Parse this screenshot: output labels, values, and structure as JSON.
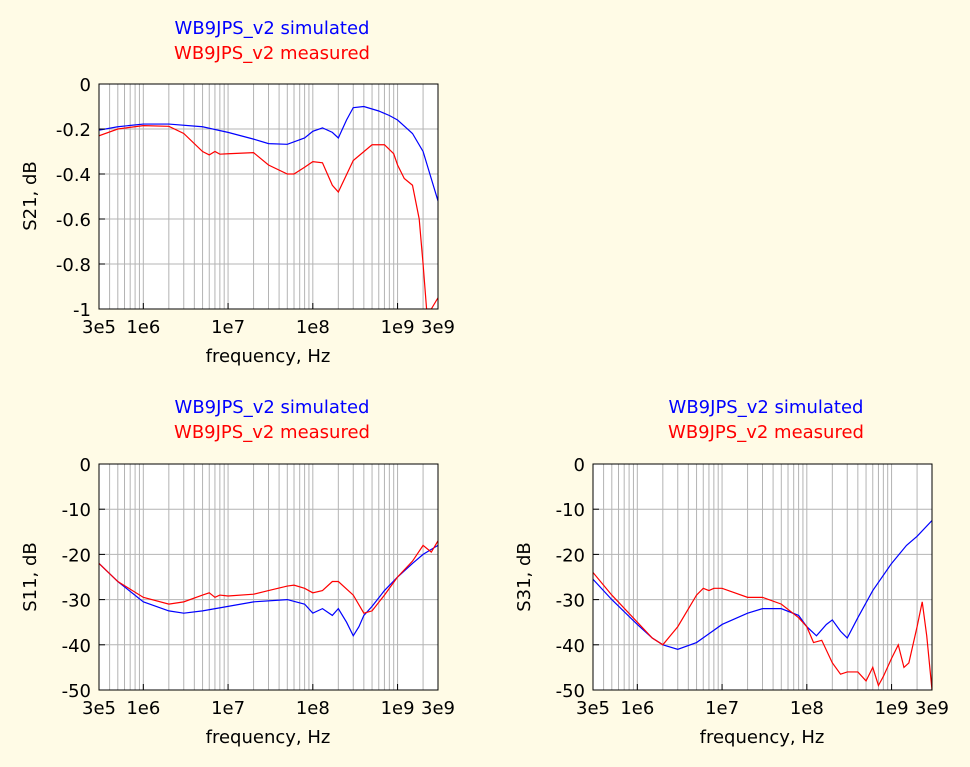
{
  "colors": {
    "simulated": "#0000ff",
    "measured": "#ff0000",
    "background": "#fffbe6",
    "grid": "#b4b4b4"
  },
  "chart_data": [
    {
      "id": "s21",
      "type": "line",
      "xlabel": "frequency, Hz",
      "ylabel": "S21, dB",
      "xscale": "log",
      "xlim": [
        300000,
        3000000000
      ],
      "ylim": [
        -1,
        0
      ],
      "xtick_labels": [
        "3e5",
        "1e6",
        "1e7",
        "1e8",
        "1e9",
        "3e9"
      ],
      "xtick_values": [
        300000,
        1000000,
        10000000,
        100000000,
        1000000000,
        3000000000
      ],
      "ytick_labels": [
        "0",
        "-0.2",
        "-0.4",
        "-0.6",
        "-0.8",
        "-1"
      ],
      "ytick_values": [
        0,
        -0.2,
        -0.4,
        -0.6,
        -0.8,
        -1
      ],
      "grid": true,
      "legend_position": "top",
      "series": [
        {
          "name": "WB9JPS_v2 simulated",
          "color": "#0000ff",
          "x": [
            300000,
            500000,
            1000000,
            2000000,
            5000000,
            10000000,
            20000000,
            30000000,
            50000000,
            80000000,
            100000000,
            130000000,
            170000000,
            200000000,
            250000000,
            300000000,
            400000000,
            600000000,
            800000000,
            1000000000,
            1500000000,
            2000000000,
            3000000000
          ],
          "y": [
            -0.205,
            -0.19,
            -0.178,
            -0.178,
            -0.19,
            -0.215,
            -0.245,
            -0.265,
            -0.268,
            -0.24,
            -0.21,
            -0.195,
            -0.215,
            -0.24,
            -0.16,
            -0.105,
            -0.1,
            -0.12,
            -0.14,
            -0.16,
            -0.22,
            -0.3,
            -0.52
          ]
        },
        {
          "name": "WB9JPS_v2 measured",
          "color": "#ff0000",
          "x": [
            300000,
            500000,
            1000000,
            2000000,
            3000000,
            5000000,
            6000000,
            7000000,
            8000000,
            10000000,
            20000000,
            30000000,
            50000000,
            60000000,
            80000000,
            100000000,
            130000000,
            170000000,
            200000000,
            300000000,
            500000000,
            700000000,
            900000000,
            1000000000,
            1200000000,
            1500000000,
            1800000000,
            2000000000,
            2200000000,
            2500000000,
            3000000000
          ],
          "y": [
            -0.23,
            -0.2,
            -0.185,
            -0.188,
            -0.22,
            -0.3,
            -0.315,
            -0.3,
            -0.312,
            -0.31,
            -0.305,
            -0.36,
            -0.4,
            -0.4,
            -0.37,
            -0.345,
            -0.35,
            -0.45,
            -0.48,
            -0.34,
            -0.27,
            -0.27,
            -0.31,
            -0.36,
            -0.42,
            -0.45,
            -0.6,
            -0.8,
            -1.0,
            -1.0,
            -0.95
          ]
        }
      ]
    },
    {
      "id": "s11",
      "type": "line",
      "xlabel": "frequency, Hz",
      "ylabel": "S11, dB",
      "xscale": "log",
      "xlim": [
        300000,
        3000000000
      ],
      "ylim": [
        -50,
        0
      ],
      "xtick_labels": [
        "3e5",
        "1e6",
        "1e7",
        "1e8",
        "1e9",
        "3e9"
      ],
      "xtick_values": [
        300000,
        1000000,
        10000000,
        100000000,
        1000000000,
        3000000000
      ],
      "ytick_labels": [
        "0",
        "-10",
        "-20",
        "-30",
        "-40",
        "-50"
      ],
      "ytick_values": [
        0,
        -10,
        -20,
        -30,
        -40,
        -50
      ],
      "grid": true,
      "legend_position": "top",
      "series": [
        {
          "name": "WB9JPS_v2 simulated",
          "color": "#0000ff",
          "x": [
            300000,
            500000,
            1000000,
            2000000,
            3000000,
            5000000,
            10000000,
            20000000,
            50000000,
            80000000,
            100000000,
            130000000,
            170000000,
            200000000,
            250000000,
            300000000,
            350000000,
            400000000,
            500000000,
            700000000,
            1000000000,
            1500000000,
            2000000000,
            3000000000
          ],
          "y": [
            -22,
            -26,
            -30.5,
            -32.5,
            -33,
            -32.5,
            -31.5,
            -30.5,
            -30,
            -31,
            -33,
            -32,
            -33.5,
            -32,
            -35,
            -38,
            -36,
            -33.5,
            -31.5,
            -28,
            -25,
            -22,
            -20,
            -18
          ]
        },
        {
          "name": "WB9JPS_v2 measured",
          "color": "#ff0000",
          "x": [
            300000,
            500000,
            1000000,
            2000000,
            3000000,
            5000000,
            6000000,
            7000000,
            8000000,
            10000000,
            20000000,
            30000000,
            50000000,
            60000000,
            80000000,
            100000000,
            130000000,
            170000000,
            200000000,
            300000000,
            400000000,
            500000000,
            700000000,
            1000000000,
            1500000000,
            2000000000,
            2500000000,
            3000000000
          ],
          "y": [
            -22,
            -26,
            -29.5,
            -31,
            -30.5,
            -29,
            -28.5,
            -29.5,
            -29,
            -29.2,
            -28.8,
            -28,
            -27,
            -26.8,
            -27.5,
            -28.5,
            -28,
            -26,
            -26,
            -29,
            -33,
            -32.5,
            -29,
            -25,
            -21.5,
            -18,
            -19.5,
            -17
          ]
        }
      ]
    },
    {
      "id": "s31",
      "type": "line",
      "xlabel": "frequency, Hz",
      "ylabel": "S31, dB",
      "xscale": "log",
      "xlim": [
        300000,
        3000000000
      ],
      "ylim": [
        -50,
        0
      ],
      "xtick_labels": [
        "3e5",
        "1e6",
        "1e7",
        "1e8",
        "1e9",
        "3e9"
      ],
      "xtick_values": [
        300000,
        1000000,
        10000000,
        100000000,
        1000000000,
        3000000000
      ],
      "ytick_labels": [
        "0",
        "-10",
        "-20",
        "-30",
        "-40",
        "-50"
      ],
      "ytick_values": [
        0,
        -10,
        -20,
        -30,
        -40,
        -50
      ],
      "grid": true,
      "legend_position": "top",
      "series": [
        {
          "name": "WB9JPS_v2 simulated",
          "color": "#0000ff",
          "x": [
            300000,
            500000,
            1000000,
            1500000,
            2000000,
            3000000,
            5000000,
            10000000,
            20000000,
            30000000,
            50000000,
            80000000,
            100000000,
            130000000,
            170000000,
            200000000,
            250000000,
            300000000,
            400000000,
            600000000,
            1000000000,
            1500000000,
            2000000000,
            3000000000
          ],
          "y": [
            -25.5,
            -30,
            -35.5,
            -38.5,
            -40,
            -41,
            -39.5,
            -35.5,
            -33,
            -32,
            -32,
            -33.5,
            -36,
            -38,
            -35.5,
            -34.5,
            -37,
            -38.5,
            -34,
            -28,
            -22,
            -18,
            -16,
            -12.5
          ]
        },
        {
          "name": "WB9JPS_v2 measured",
          "color": "#ff0000",
          "x": [
            300000,
            500000,
            1000000,
            1500000,
            2000000,
            3000000,
            5000000,
            6000000,
            7000000,
            8000000,
            10000000,
            20000000,
            30000000,
            50000000,
            80000000,
            100000000,
            120000000,
            150000000,
            200000000,
            250000000,
            300000000,
            400000000,
            500000000,
            600000000,
            700000000,
            800000000,
            1000000000,
            1200000000,
            1400000000,
            1600000000,
            2000000000,
            2300000000,
            2600000000,
            3000000000
          ],
          "y": [
            -24,
            -29,
            -35,
            -38.5,
            -40,
            -36,
            -29,
            -27.5,
            -28,
            -27.5,
            -27.5,
            -29.5,
            -29.5,
            -31,
            -34,
            -36,
            -39.5,
            -39,
            -44,
            -46.5,
            -46,
            -46,
            -48,
            -45,
            -49,
            -47,
            -43,
            -40,
            -45,
            -44,
            -36,
            -30.5,
            -38,
            -50
          ]
        }
      ]
    }
  ]
}
